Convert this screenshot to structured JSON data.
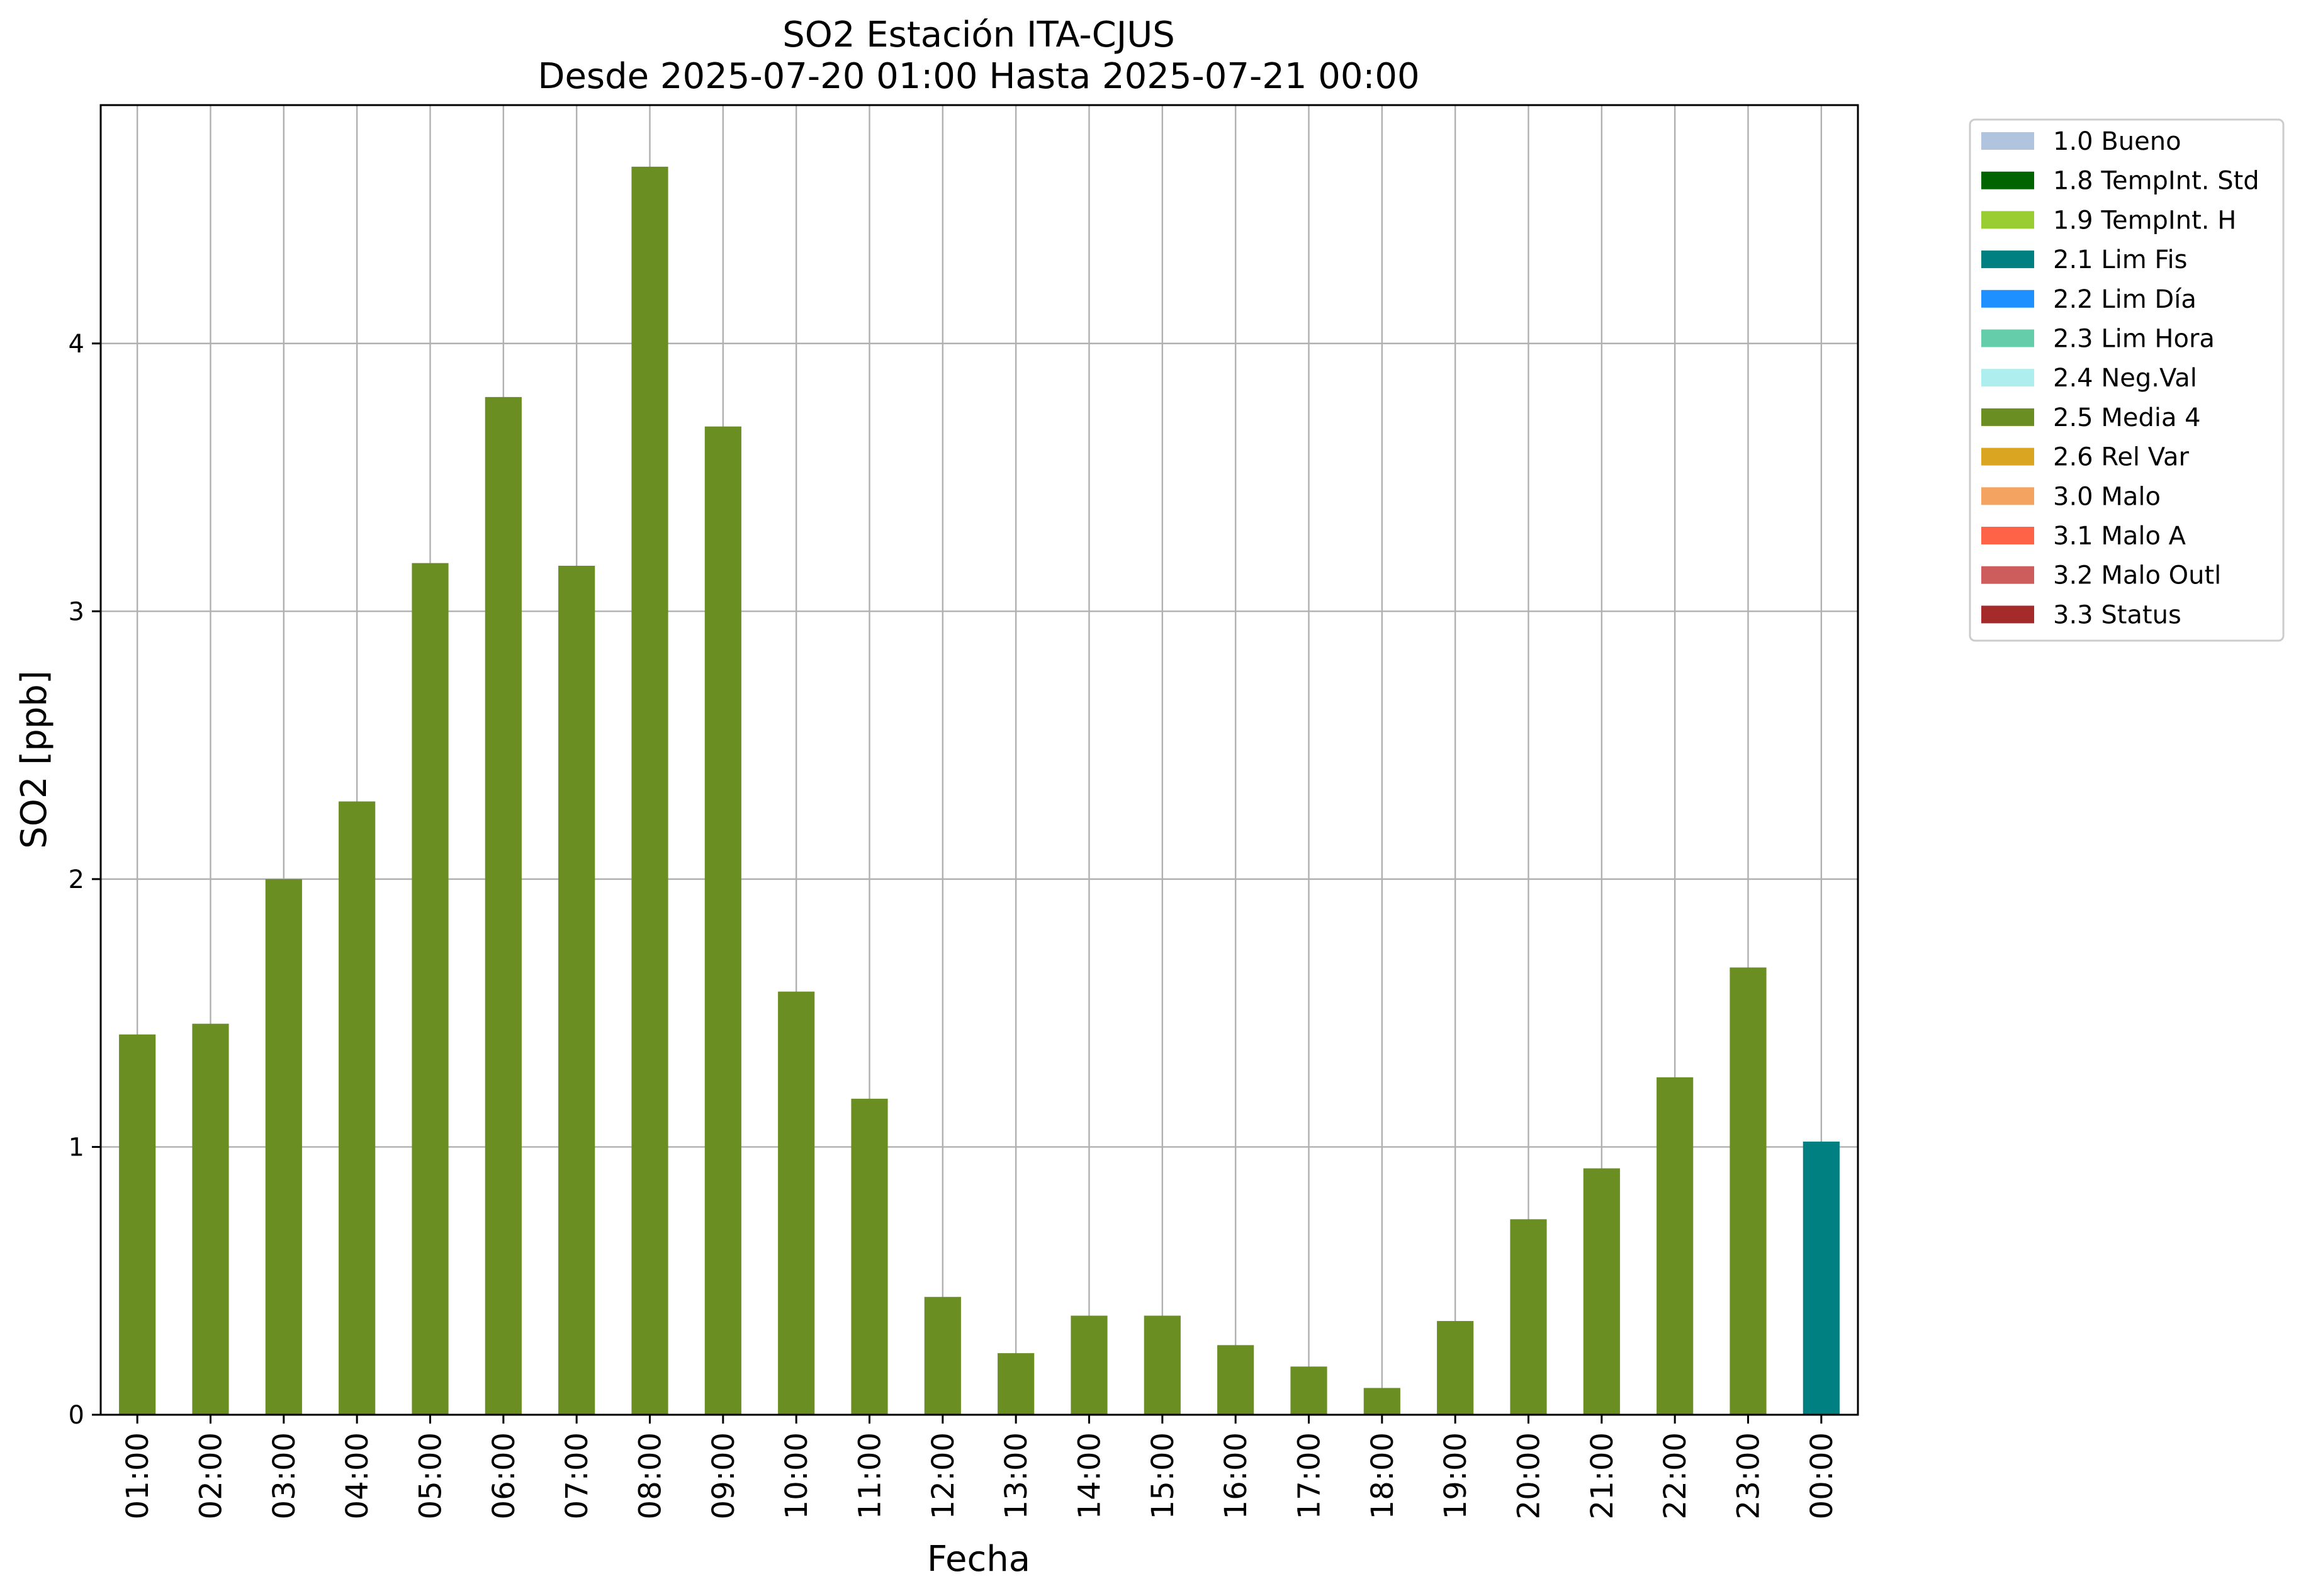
{
  "chart_data": {
    "type": "bar",
    "title": [
      "SO2 Estación ITA-CJUS",
      "Desde 2025-07-20 01:00 Hasta 2025-07-21 00:00"
    ],
    "xlabel": "Fecha",
    "ylabel": "SO2 [ppb]",
    "ylim": [
      0,
      4.89
    ],
    "yticks": [
      0,
      1,
      2,
      3,
      4
    ],
    "grid": true,
    "legend_position": "outside-right",
    "categories": [
      "01:00",
      "02:00",
      "03:00",
      "04:00",
      "05:00",
      "06:00",
      "07:00",
      "08:00",
      "09:00",
      "10:00",
      "11:00",
      "12:00",
      "13:00",
      "14:00",
      "15:00",
      "16:00",
      "17:00",
      "18:00",
      "19:00",
      "20:00",
      "21:00",
      "22:00",
      "23:00",
      "00:00"
    ],
    "values": [
      1.42,
      1.46,
      2.0,
      2.29,
      3.18,
      3.8,
      3.17,
      4.66,
      3.69,
      1.58,
      1.18,
      0.44,
      0.23,
      0.37,
      0.37,
      0.26,
      0.18,
      0.1,
      0.35,
      0.73,
      0.92,
      1.26,
      1.67,
      1.02
    ],
    "bar_flags": [
      "2.5 Media 4",
      "2.5 Media 4",
      "2.5 Media 4",
      "2.5 Media 4",
      "2.5 Media 4",
      "2.5 Media 4",
      "2.5 Media 4",
      "2.5 Media 4",
      "2.5 Media 4",
      "2.5 Media 4",
      "2.5 Media 4",
      "2.5 Media 4",
      "2.5 Media 4",
      "2.5 Media 4",
      "2.5 Media 4",
      "2.5 Media 4",
      "2.5 Media 4",
      "2.5 Media 4",
      "2.5 Media 4",
      "2.5 Media 4",
      "2.5 Media 4",
      "2.5 Media 4",
      "2.5 Media 4",
      "2.1 Lim Fis"
    ],
    "legend": [
      {
        "label": "1.0 Bueno",
        "color": "#b0c4de"
      },
      {
        "label": "1.8 TempInt. Std",
        "color": "#006400"
      },
      {
        "label": "1.9 TempInt. H",
        "color": "#9acd32"
      },
      {
        "label": "2.1 Lim Fis",
        "color": "#008080"
      },
      {
        "label": "2.2 Lim Día",
        "color": "#1e90ff"
      },
      {
        "label": "2.3 Lim Hora",
        "color": "#66cdaa"
      },
      {
        "label": "2.4 Neg.Val",
        "color": "#afeeee"
      },
      {
        "label": "2.5 Media 4",
        "color": "#6b8e23"
      },
      {
        "label": "2.6 Rel Var",
        "color": "#daa520"
      },
      {
        "label": "3.0 Malo",
        "color": "#f4a460"
      },
      {
        "label": "3.1 Malo A",
        "color": "#ff6347"
      },
      {
        "label": "3.2 Malo Outl",
        "color": "#cd5c5c"
      },
      {
        "label": "3.3 Status",
        "color": "#a52a2a"
      }
    ]
  }
}
